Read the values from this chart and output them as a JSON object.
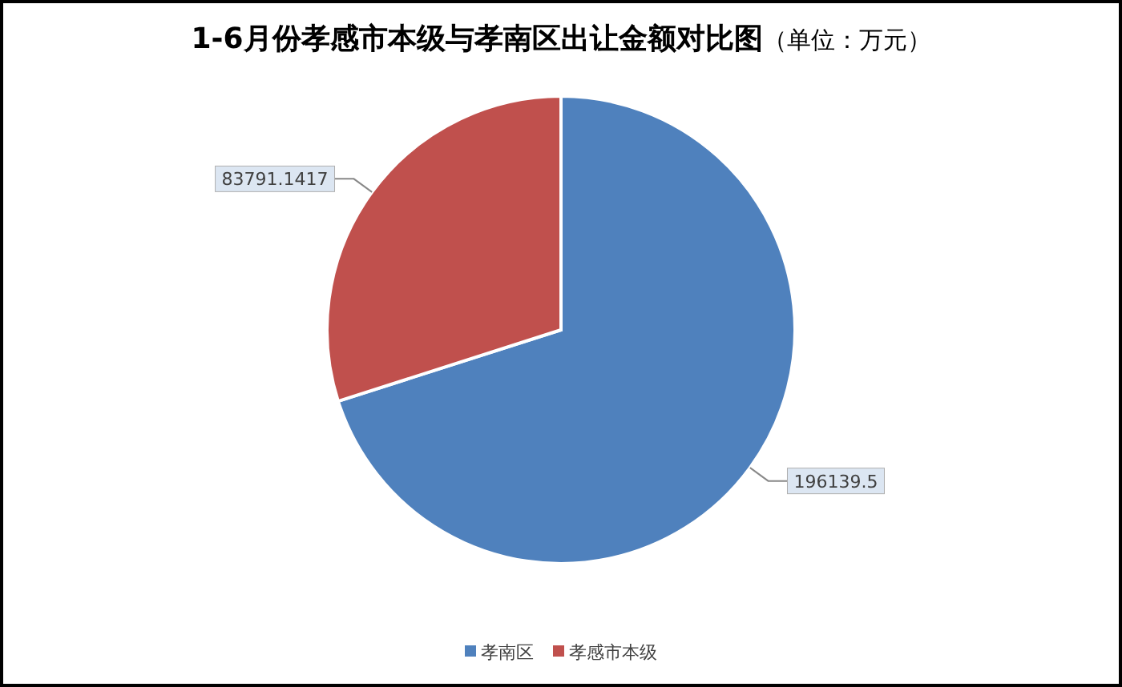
{
  "chart_data": {
    "type": "pie",
    "title": "1-6月份孝感市本级与孝南区出让金额对比图",
    "subtitle": "（单位：万元）",
    "categories": [
      "孝南区",
      "孝感市本级"
    ],
    "values": [
      196139.5,
      83791.1417
    ],
    "colors": [
      "#4f81bd",
      "#c0504d"
    ],
    "data_labels": true,
    "legend": "bottom"
  }
}
